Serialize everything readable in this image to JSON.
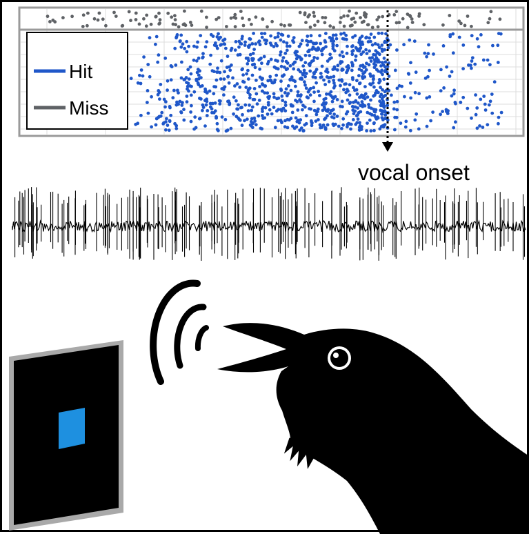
{
  "raster": {
    "legend": {
      "hit_label": "Hit",
      "miss_label": "Miss",
      "hit_color": "#1f57c9",
      "miss_color": "#5f6266"
    }
  },
  "annotation": {
    "onset_label": "vocal onset"
  },
  "screen": {
    "frame_color": "#a9a9a9",
    "stimulus_color": "#1e90e0"
  }
}
